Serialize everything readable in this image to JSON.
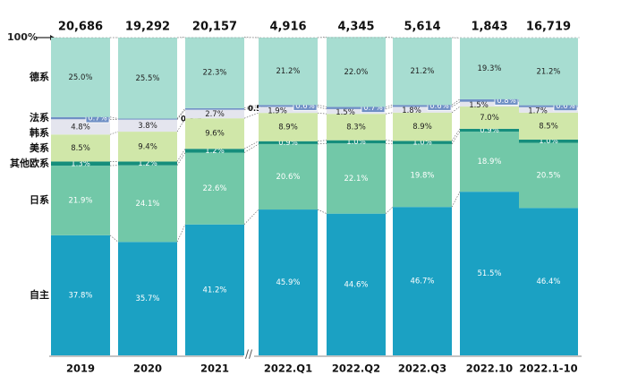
{
  "chart_data": {
    "type": "stacked_bar",
    "annotation": "100%",
    "categories": [
      "2019",
      "2020",
      "2021",
      "2022.Q1",
      "2022.Q2",
      "2022.Q3",
      "2022.10",
      "2022.1-10"
    ],
    "totals": {
      "values": [
        20686,
        19292,
        20157,
        4916,
        4345,
        5614,
        1843,
        16719
      ],
      "value_labels": [
        "20,686",
        "19,292",
        "20,157",
        "4,916",
        "4,345",
        "5,614",
        "1,843",
        "16,719"
      ]
    },
    "ylim": [
      0,
      100
    ],
    "series": [
      {
        "name": "自主",
        "color": "#1ba1c3",
        "values": [
          37.8,
          35.7,
          41.2,
          45.9,
          44.6,
          46.7,
          51.5,
          46.4
        ],
        "value_labels": [
          "37.8%",
          "35.7%",
          "41.2%",
          "45.9%",
          "44.6%",
          "46.7%",
          "51.5%",
          "46.4%"
        ]
      },
      {
        "name": "日系",
        "color": "#72c8a8",
        "values": [
          21.9,
          24.1,
          22.6,
          20.6,
          22.1,
          19.8,
          18.9,
          20.5
        ],
        "value_labels": [
          "21.9%",
          "24.1%",
          "22.6%",
          "20.6%",
          "22.1%",
          "19.8%",
          "18.9%",
          "20.5%"
        ]
      },
      {
        "name": "其他欧系",
        "color": "#168e7c",
        "values": [
          1.3,
          1.2,
          1.2,
          0.9,
          1.0,
          1.0,
          0.9,
          1.0
        ],
        "value_labels": [
          "1.3%",
          "1.2%",
          "1.2%",
          "0.9%",
          "1.0%",
          "1.0%",
          "0.9%",
          "1.0%"
        ]
      },
      {
        "name": "美系",
        "color": "#d0e7a9",
        "values": [
          8.5,
          9.4,
          9.6,
          8.9,
          8.3,
          8.9,
          7.0,
          8.5
        ],
        "value_labels": [
          "8.5%",
          "9.4%",
          "9.6%",
          "8.9%",
          "8.3%",
          "8.9%",
          "7.0%",
          "8.5%"
        ]
      },
      {
        "name": "韩系",
        "color": "#e4e5ee",
        "values": [
          4.8,
          3.8,
          2.7,
          1.9,
          1.5,
          1.8,
          1.5,
          1.7
        ],
        "value_labels": [
          "4.8%",
          "3.8%",
          "2.7%",
          "1.9%",
          "1.5%",
          "1.8%",
          "1.5%",
          "1.7%"
        ]
      },
      {
        "name": "法系",
        "color": "#6f8fc5",
        "values": [
          0.7,
          0.3,
          0.5,
          0.6,
          0.7,
          0.6,
          0.8,
          0.6
        ],
        "value_labels": [
          "0.7%",
          "0.3%",
          "0.5%",
          "0.6%",
          "0.7%",
          "0.6%",
          "0.8%",
          "0.6%"
        ]
      },
      {
        "name": "德系",
        "color": "#a7ddd1",
        "values": [
          25.0,
          25.5,
          22.3,
          21.2,
          22.0,
          21.2,
          19.3,
          21.2
        ],
        "value_labels": [
          "25.0%",
          "25.5%",
          "22.3%",
          "21.2%",
          "22.0%",
          "21.2%",
          "19.3%",
          "21.2%"
        ]
      }
    ]
  }
}
